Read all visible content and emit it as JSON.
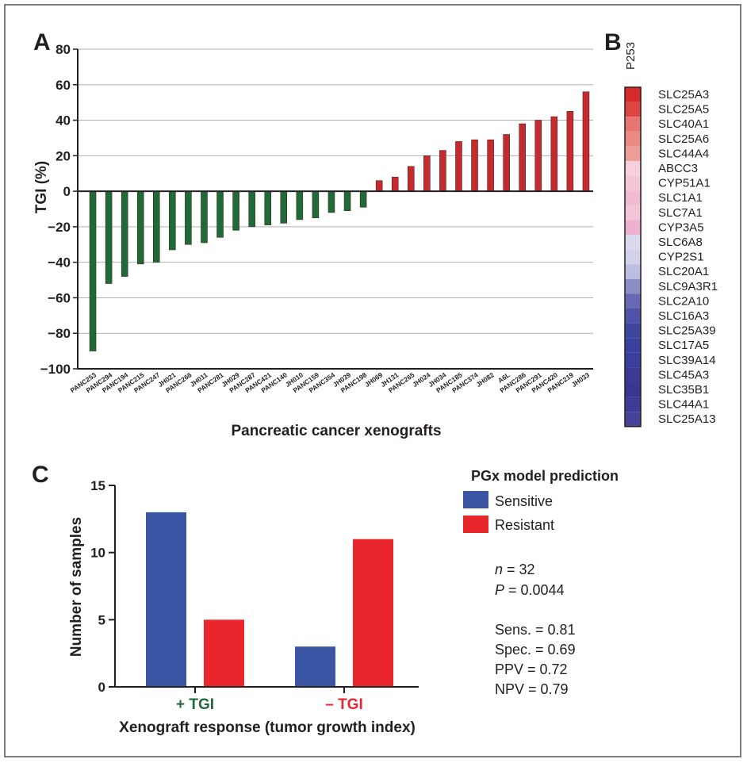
{
  "panels": {
    "a": "A",
    "b": "B",
    "c": "C"
  },
  "colors": {
    "sensitive_bar": "#1e6b37",
    "resistant_bar": "#c52b2e",
    "legend_sensitive": "#3a55a4",
    "legend_resistant": "#e8262b",
    "axis": "#231f20",
    "grid": "#b0b0b0"
  },
  "chart_data": [
    {
      "type": "bar",
      "xlabel": "Pancreatic cancer xenografts",
      "ylabel": "TGI (%)",
      "ylim": [
        -100,
        80
      ],
      "yticks": [
        "80",
        "60",
        "40",
        "20",
        "0",
        "−20",
        "−40",
        "−60",
        "−80",
        "−100"
      ],
      "grid": true,
      "categories": [
        "PANC253",
        "PANC294",
        "PANC194",
        "PANC215",
        "PANC247",
        "JH021",
        "PANC266",
        "JH011",
        "PANC281",
        "JH029",
        "PANC287",
        "PANC421",
        "PANC140",
        "JH010",
        "PANC159",
        "PANC354",
        "JH039",
        "PANC198",
        "JH069",
        "JH131",
        "PANC265",
        "JH024",
        "JH034",
        "PANC185",
        "PANC374",
        "JH082",
        "A6L",
        "PANC286",
        "PANC291",
        "PANC420",
        "PANC219",
        "JH033"
      ],
      "values": [
        -90,
        -52,
        -48,
        -41,
        -40,
        -33,
        -30,
        -29,
        -26,
        -22,
        -20,
        -19,
        -18,
        -16,
        -15,
        -12,
        -11,
        -9,
        6,
        8,
        14,
        20,
        23,
        28,
        29,
        29,
        32,
        38,
        40,
        42,
        45,
        56
      ]
    },
    {
      "type": "heatmap",
      "column_label": "P253",
      "rows": [
        {
          "gene": "SLC25A3",
          "color": "#d7282a"
        },
        {
          "gene": "SLC25A5",
          "color": "#de4644"
        },
        {
          "gene": "SLC40A1",
          "color": "#e77672"
        },
        {
          "gene": "SLC25A6",
          "color": "#eb8a85"
        },
        {
          "gene": "SLC44A4",
          "color": "#ee9e99"
        },
        {
          "gene": "ABCC3",
          "color": "#f6d0dc"
        },
        {
          "gene": "CYP51A1",
          "color": "#f4c6d8"
        },
        {
          "gene": "SLC1A1",
          "color": "#f1bad2"
        },
        {
          "gene": "SLC7A1",
          "color": "#f3c3d7"
        },
        {
          "gene": "CYP3A5",
          "color": "#eeb1cd"
        },
        {
          "gene": "SLC6A8",
          "color": "#d9d8ec"
        },
        {
          "gene": "CYP2S1",
          "color": "#d2d1ea"
        },
        {
          "gene": "SLC20A1",
          "color": "#bcbde0"
        },
        {
          "gene": "SLC9A3R1",
          "color": "#8b8ec7"
        },
        {
          "gene": "SLC2A10",
          "color": "#6669b4"
        },
        {
          "gene": "SLC16A3",
          "color": "#4e53a8"
        },
        {
          "gene": "SLC25A39",
          "color": "#3f46a0"
        },
        {
          "gene": "SLC17A5",
          "color": "#39409d"
        },
        {
          "gene": "SLC39A14",
          "color": "#3a3f9c"
        },
        {
          "gene": "SLC45A3",
          "color": "#3d3a97"
        },
        {
          "gene": "SLC35B1",
          "color": "#3b3694"
        },
        {
          "gene": "SLC44A1",
          "color": "#3f3b97"
        },
        {
          "gene": "SLC25A13",
          "color": "#454398"
        }
      ]
    },
    {
      "type": "bar",
      "xlabel": "Xenograft response (tumor growth index)",
      "ylabel": "Number of samples",
      "ylim": [
        0,
        15
      ],
      "yticks": [
        "15",
        "10",
        "5",
        "0"
      ],
      "categories": [
        "+ TGI",
        "– TGI"
      ],
      "category_colors": [
        "#1e6b37",
        "#e8262b"
      ],
      "series": [
        {
          "name": "Sensitive",
          "values": [
            13,
            3
          ]
        },
        {
          "name": "Resistant",
          "values": [
            5,
            11
          ]
        }
      ],
      "legend_title": "PGx model prediction",
      "legend_position": "right"
    }
  ],
  "stats": {
    "n_label": "n",
    "n_value": " = 32",
    "p_label": "P",
    "p_value": " = 0.0044",
    "sens": "Sens. = 0.81",
    "spec": "Spec. = 0.69",
    "ppv": "PPV = 0.72",
    "npv": "NPV = 0.79"
  }
}
